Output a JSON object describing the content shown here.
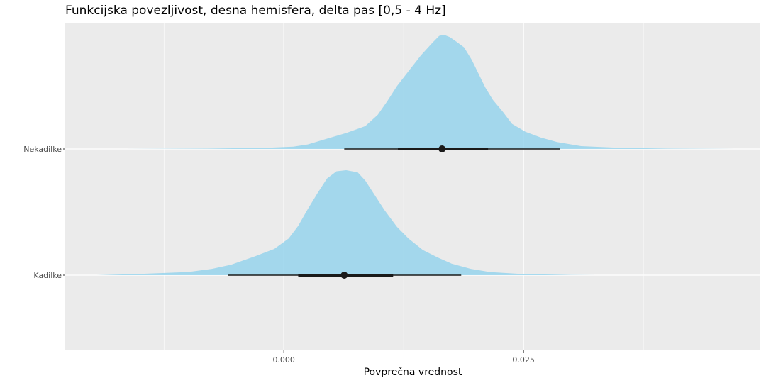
{
  "chart_data": {
    "type": "area",
    "subtype": "halfeye-density-with-interval",
    "title": "Funkcijska povezljivost, desna hemisfera, delta pas [0,5 - 4 Hz]",
    "xlabel": "Povprečna vrednost",
    "ylabel": "",
    "xlim": [
      -0.0228,
      0.0497
    ],
    "x_ticks": [
      {
        "value": 0.0,
        "label": "0.000"
      },
      {
        "value": 0.025,
        "label": "0.025"
      }
    ],
    "x_minor_ticks": [
      -0.0125,
      0.0125,
      0.0375
    ],
    "categories": [
      "Kadilke",
      "Nekadilke"
    ],
    "grid": true,
    "panel_background": "#ebebeb",
    "fill_color": "#87ceeb",
    "fill_opacity": 0.72,
    "interval_color": "#1a1a1a",
    "series": [
      {
        "category": "Nekadilke",
        "point": 0.0165,
        "interval_66": [
          0.0119,
          0.0213
        ],
        "interval_95": [
          0.0063,
          0.0288
        ],
        "density": {
          "x": [
            -0.0165,
            -0.008,
            -0.002,
            0.001,
            0.0025,
            0.0045,
            0.0065,
            0.0085,
            0.0098,
            0.0108,
            0.0118,
            0.013,
            0.0143,
            0.0155,
            0.0162,
            0.0167,
            0.0173,
            0.018,
            0.0188,
            0.0196,
            0.0203,
            0.021,
            0.0218,
            0.0228,
            0.0238,
            0.0252,
            0.0268,
            0.0285,
            0.031,
            0.035,
            0.04,
            0.047
          ],
          "y": [
            0.0,
            0.003,
            0.01,
            0.02,
            0.04,
            0.09,
            0.14,
            0.2,
            0.3,
            0.42,
            0.55,
            0.68,
            0.82,
            0.93,
            0.99,
            1.0,
            0.98,
            0.94,
            0.89,
            0.78,
            0.66,
            0.54,
            0.43,
            0.33,
            0.22,
            0.15,
            0.1,
            0.06,
            0.025,
            0.01,
            0.003,
            0.0
          ]
        }
      },
      {
        "category": "Kadilke",
        "point": 0.0063,
        "interval_66": [
          0.0015,
          0.0114
        ],
        "interval_95": [
          -0.0058,
          0.0185
        ],
        "density": {
          "x": [
            -0.0195,
            -0.0155,
            -0.01,
            -0.0075,
            -0.0055,
            -0.003,
            -0.001,
            0.0005,
            0.0015,
            0.0025,
            0.0035,
            0.0045,
            0.0055,
            0.0065,
            0.0077,
            0.0085,
            0.0095,
            0.0105,
            0.0118,
            0.013,
            0.0145,
            0.016,
            0.0175,
            0.0195,
            0.0215,
            0.025,
            0.03,
            0.0325
          ],
          "y": [
            0.0,
            0.01,
            0.03,
            0.06,
            0.1,
            0.18,
            0.25,
            0.35,
            0.47,
            0.63,
            0.78,
            0.92,
            0.99,
            1.0,
            0.98,
            0.9,
            0.76,
            0.62,
            0.46,
            0.35,
            0.24,
            0.17,
            0.11,
            0.06,
            0.03,
            0.01,
            0.002,
            0.0
          ]
        }
      }
    ]
  }
}
